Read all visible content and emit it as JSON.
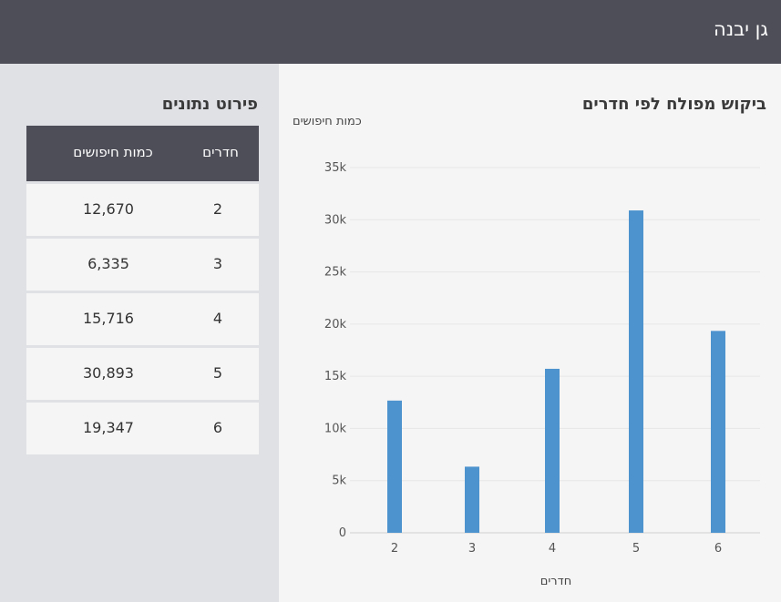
{
  "header": {
    "title": "גן יבנה"
  },
  "sidebar": {
    "title": "פירוט נתונים",
    "table": {
      "col_rooms": "חדרים",
      "col_count": "כמות חיפושים",
      "rows": [
        {
          "rooms": "2",
          "count": "12,670"
        },
        {
          "rooms": "3",
          "count": "6,335"
        },
        {
          "rooms": "4",
          "count": "15,716"
        },
        {
          "rooms": "5",
          "count": "30,893"
        },
        {
          "rooms": "6",
          "count": "19,347"
        }
      ]
    }
  },
  "main": {
    "title": "ביקוש מפולח לפי חדרים"
  },
  "chart_data": {
    "type": "bar",
    "ylabel": "כמות חיפושים",
    "xlabel": "חדרים",
    "categories": [
      "2",
      "3",
      "4",
      "5",
      "6"
    ],
    "values": [
      12670,
      6335,
      15716,
      30893,
      19347
    ],
    "ylim": [
      0,
      35000
    ],
    "yticks": [
      0,
      5000,
      10000,
      15000,
      20000,
      25000,
      30000,
      35000
    ],
    "ytick_labels": [
      "0",
      "5k",
      "10k",
      "15k",
      "20k",
      "25k",
      "30k",
      "35k"
    ],
    "bar_color": "#4d94cf",
    "grid": true
  }
}
